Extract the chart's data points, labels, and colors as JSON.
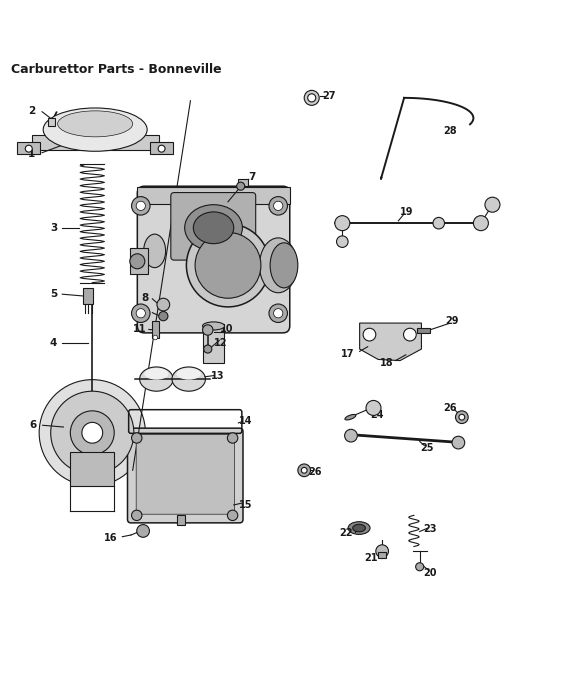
{
  "title": "Carburettor Parts - Bonneville",
  "title_fontsize": 9,
  "background_color": "#ffffff",
  "line_color": "#1a1a1a",
  "label_fontsize": 7.5,
  "figsize": [
    5.83,
    6.75
  ],
  "dpi": 100
}
